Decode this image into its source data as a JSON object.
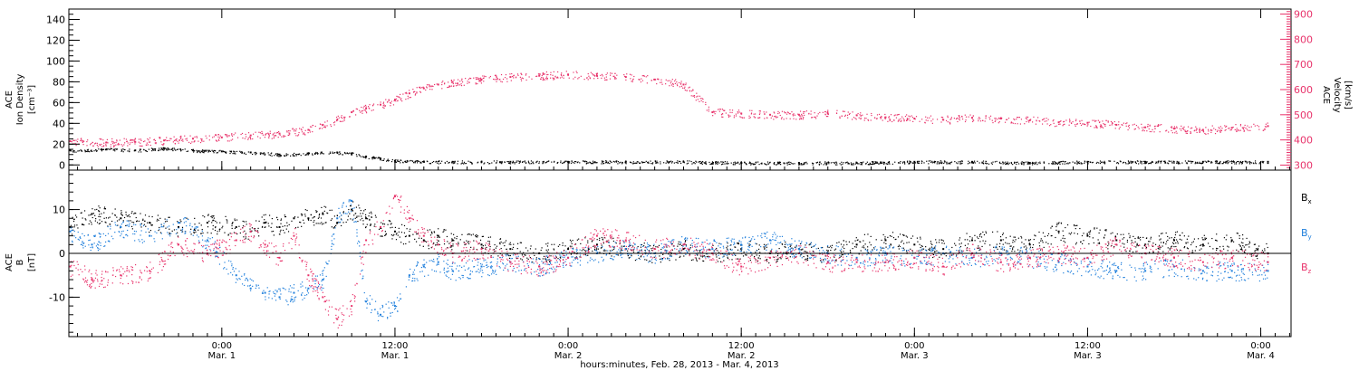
{
  "chart_data": [
    {
      "type": "scatter",
      "panel": "top",
      "title": "",
      "xlabel": "hours:minutes, Feb. 28, 2013 - Mar.  4, 2013",
      "ylabel_left": [
        "ACE",
        "Ion Density",
        "[cm⁻³]"
      ],
      "ylabel_right": [
        "ACE",
        "Velocity",
        "[km/s]"
      ],
      "ylim_left": [
        -5,
        150
      ],
      "yticks_left": [
        0,
        20,
        40,
        60,
        80,
        100,
        120,
        140
      ],
      "ylim_right": [
        280,
        920
      ],
      "yticks_right": [
        300,
        400,
        500,
        600,
        700,
        800,
        900
      ],
      "x_unit": "hours from Mar. 1 0:00",
      "xlim": [
        -10.6,
        74.1
      ],
      "grid": false,
      "colors": {
        "density": "#000000",
        "velocity": "#e8336b"
      },
      "series": [
        {
          "axis": "left",
          "color": "#000000",
          "x": [
            -10.5,
            -8,
            -6,
            -4,
            -2,
            0,
            2,
            4,
            6,
            8,
            9,
            10,
            11,
            12,
            14,
            16,
            18,
            20,
            24,
            28,
            32,
            36,
            40,
            44,
            48,
            52,
            56,
            60,
            64,
            68,
            72.5
          ],
          "values": [
            14,
            15,
            14,
            16,
            14,
            13,
            12,
            10,
            11,
            12,
            11,
            8,
            6,
            4,
            3,
            3,
            3,
            3,
            3,
            3,
            3,
            2,
            2,
            2,
            3,
            3,
            2,
            3,
            3,
            3,
            3
          ]
        },
        {
          "axis": "right",
          "color": "#e8336b",
          "x": [
            -10.5,
            -8,
            -6,
            -4,
            -2,
            0,
            2,
            4,
            6,
            7,
            8,
            9,
            10,
            11,
            12,
            13,
            14,
            15,
            16,
            18,
            20,
            22,
            24,
            26,
            28,
            30,
            32,
            34,
            36,
            38,
            40,
            42,
            44,
            46,
            48,
            50,
            52,
            54,
            56,
            58,
            60,
            62,
            64,
            66,
            68,
            70,
            72.5
          ],
          "values": [
            395,
            390,
            392,
            398,
            405,
            410,
            418,
            425,
            440,
            460,
            480,
            510,
            525,
            540,
            560,
            585,
            605,
            620,
            630,
            640,
            650,
            655,
            660,
            655,
            650,
            640,
            620,
            510,
            505,
            500,
            500,
            505,
            498,
            490,
            485,
            480,
            488,
            485,
            478,
            470,
            468,
            460,
            450,
            445,
            440,
            448,
            455
          ]
        }
      ]
    },
    {
      "type": "scatter",
      "panel": "bottom",
      "ylabel": [
        "ACE",
        "B",
        "[nT]"
      ],
      "ylim": [
        -19,
        19
      ],
      "yticks": [
        -10,
        0,
        10
      ],
      "xlim": [
        -10.6,
        74.1
      ],
      "zero_line": true,
      "grid": false,
      "legend_position": "right",
      "series": [
        {
          "name": "Bx",
          "color": "#000000",
          "x": [
            -10.5,
            -9,
            -7,
            -5,
            -3,
            -1,
            1,
            2,
            3,
            4,
            5,
            6,
            7,
            8,
            9,
            10,
            11,
            12,
            13,
            14,
            15,
            16,
            18,
            20,
            22,
            24,
            26,
            28,
            30,
            32,
            34,
            36,
            38,
            40,
            42,
            44,
            46,
            48,
            50,
            52,
            54,
            56,
            58,
            60,
            62,
            64,
            66,
            68,
            70,
            72.5
          ],
          "values": [
            6,
            9,
            8,
            7,
            6,
            7,
            6,
            5,
            7,
            6,
            8,
            8,
            9,
            7,
            10,
            8,
            6,
            5,
            4,
            3,
            4,
            3,
            2,
            1,
            0,
            1,
            2,
            1,
            0,
            1,
            0,
            1,
            0,
            1,
            0,
            2,
            3,
            2,
            1,
            3,
            3,
            2,
            5,
            4,
            3,
            2,
            3,
            2,
            3,
            0
          ]
        },
        {
          "name": "By",
          "color": "#1f7fdc",
          "x": [
            -10.5,
            -9,
            -7,
            -5,
            -3,
            -1,
            1,
            2,
            3,
            4,
            5,
            6,
            7,
            8,
            9,
            10,
            11,
            12,
            13,
            14,
            15,
            16,
            18,
            20,
            22,
            24,
            26,
            28,
            30,
            32,
            34,
            36,
            38,
            40,
            42,
            44,
            46,
            48,
            50,
            52,
            54,
            56,
            58,
            60,
            62,
            64,
            66,
            68,
            70,
            72.5
          ],
          "values": [
            5,
            2,
            6,
            4,
            7,
            3,
            -5,
            -8,
            -9,
            -10,
            -9,
            -8,
            -6,
            8,
            12,
            -11,
            -14,
            -12,
            -5,
            -3,
            -2,
            -4,
            -3,
            -2,
            -3,
            -1,
            0,
            1,
            0,
            2,
            1,
            2,
            3,
            1,
            0,
            -1,
            0,
            -1,
            0,
            -1,
            0,
            -1,
            -2,
            -3,
            -4,
            -4,
            -3,
            -4,
            -4,
            -4
          ]
        },
        {
          "name": "Bz",
          "color": "#e8336b",
          "x": [
            -10.5,
            -9,
            -7,
            -5,
            -3,
            -1,
            1,
            2,
            3,
            4,
            5,
            6,
            7,
            8,
            9,
            10,
            11,
            12,
            13,
            14,
            15,
            16,
            18,
            20,
            22,
            24,
            26,
            28,
            30,
            32,
            34,
            36,
            38,
            40,
            42,
            44,
            46,
            48,
            50,
            52,
            54,
            56,
            58,
            60,
            62,
            64,
            66,
            68,
            70,
            72.5
          ],
          "values": [
            -3,
            -6,
            -5,
            -4,
            2,
            0,
            3,
            5,
            2,
            -1,
            4,
            -5,
            -10,
            -15,
            -12,
            3,
            6,
            13,
            8,
            4,
            2,
            0,
            1,
            -2,
            -3,
            -1,
            4,
            3,
            1,
            2,
            0,
            -3,
            -1,
            0,
            -2,
            -2,
            -2,
            -1,
            -3,
            0,
            -2,
            -1,
            0,
            -1,
            2,
            0,
            -1,
            -2,
            -1,
            -2
          ]
        }
      ]
    }
  ],
  "x_axis": {
    "ticks": [
      {
        "x": 0,
        "time": "0:00",
        "day": "Mar. 1"
      },
      {
        "x": 12,
        "time": "12:00",
        "day": "Mar. 1"
      },
      {
        "x": 24,
        "time": "0:00",
        "day": "Mar. 2"
      },
      {
        "x": 36,
        "time": "12:00",
        "day": "Mar. 2"
      },
      {
        "x": 48,
        "time": "0:00",
        "day": "Mar. 3"
      },
      {
        "x": 60,
        "time": "12:00",
        "day": "Mar. 3"
      },
      {
        "x": 72,
        "time": "0:00",
        "day": "Mar. 4"
      }
    ],
    "label": "hours:minutes, Feb. 28, 2013 - Mar.  4, 2013"
  },
  "legend": [
    {
      "name": "B",
      "sub": "x",
      "color": "#000000"
    },
    {
      "name": "B",
      "sub": "y",
      "color": "#1f7fdc"
    },
    {
      "name": "B",
      "sub": "z",
      "color": "#e8336b"
    }
  ]
}
